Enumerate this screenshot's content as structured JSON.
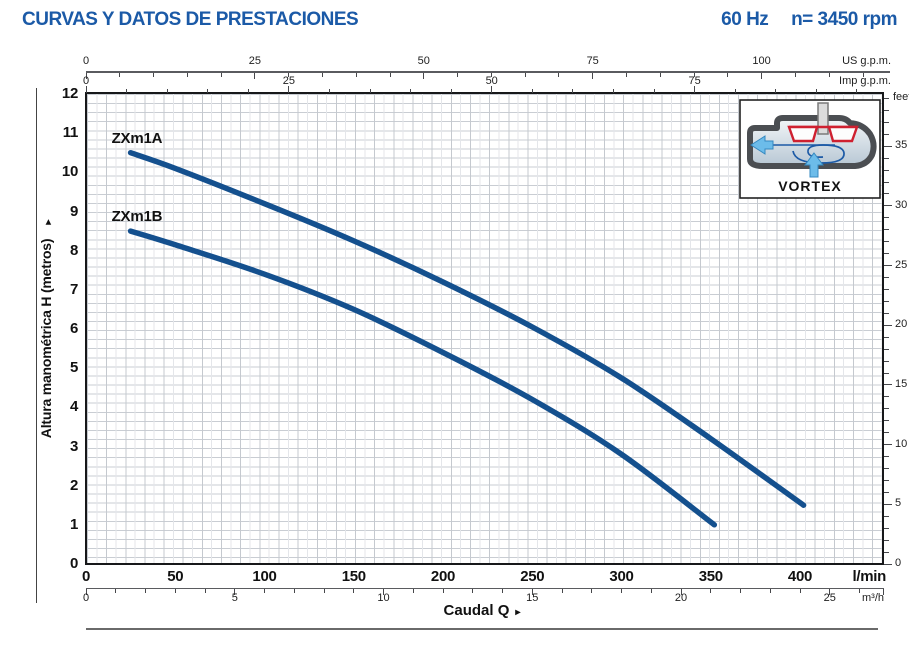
{
  "header": {
    "title": "CURVAS Y DATOS DE PRESTACIONES",
    "frequency": "60 Hz",
    "speed": "n= 3450 rpm"
  },
  "ui": {
    "axis_arrow": "▸"
  },
  "inset": {
    "label": "VORTEX"
  },
  "chart_data": {
    "type": "line",
    "title": "",
    "xlabel": "Caudal Q",
    "ylabel": "Altura manométrica H (metros)",
    "grid": "fine",
    "legend_position": "labels-at-curve-start",
    "xlim_lmin": [
      0,
      447
    ],
    "ylim_m": [
      0,
      12
    ],
    "x_axes": [
      {
        "id": "us_gpm",
        "name": "US g.p.m.",
        "lmin_per_unit": 3.785,
        "labels": [
          0,
          25,
          50,
          75,
          100
        ],
        "minor_step": 5,
        "max_minor": 115
      },
      {
        "id": "imp_gpm",
        "name": "Imp g.p.m.",
        "lmin_per_unit": 4.546,
        "labels": [
          0,
          25,
          50,
          75
        ],
        "minor_step": 5,
        "max_minor": 95
      },
      {
        "id": "lmin",
        "name": "l/min",
        "lmin_per_unit": 1,
        "labels": [
          0,
          50,
          100,
          150,
          200,
          250,
          300,
          350,
          400
        ]
      },
      {
        "id": "m3h",
        "name": "m³/h",
        "lmin_per_unit": 16.667,
        "labels": [
          0,
          5,
          10,
          15,
          20,
          25
        ],
        "minor_step": 1,
        "max_minor": 26
      }
    ],
    "y_axes": [
      {
        "id": "metros",
        "name": "metros",
        "labels": [
          0,
          1,
          2,
          3,
          4,
          5,
          6,
          7,
          8,
          9,
          10,
          11,
          12
        ]
      },
      {
        "id": "feet",
        "name": "feet",
        "m_per_unit": 0.3048,
        "labels": [
          0,
          5,
          10,
          15,
          20,
          25,
          30,
          35
        ],
        "minor_step": 1,
        "max_minor": 39
      }
    ],
    "series": [
      {
        "name": "ZXm1A",
        "color": "#14508e",
        "points_lmin_m": [
          [
            25,
            10.5
          ],
          [
            50,
            10.1
          ],
          [
            100,
            9.2
          ],
          [
            150,
            8.25
          ],
          [
            200,
            7.2
          ],
          [
            250,
            6.05
          ],
          [
            300,
            4.75
          ],
          [
            350,
            3.2
          ],
          [
            402,
            1.5
          ]
        ]
      },
      {
        "name": "ZXm1B",
        "color": "#14508e",
        "points_lmin_m": [
          [
            25,
            8.5
          ],
          [
            50,
            8.15
          ],
          [
            100,
            7.4
          ],
          [
            150,
            6.5
          ],
          [
            200,
            5.4
          ],
          [
            250,
            4.2
          ],
          [
            300,
            2.8
          ],
          [
            352,
            1.0
          ]
        ]
      }
    ]
  }
}
